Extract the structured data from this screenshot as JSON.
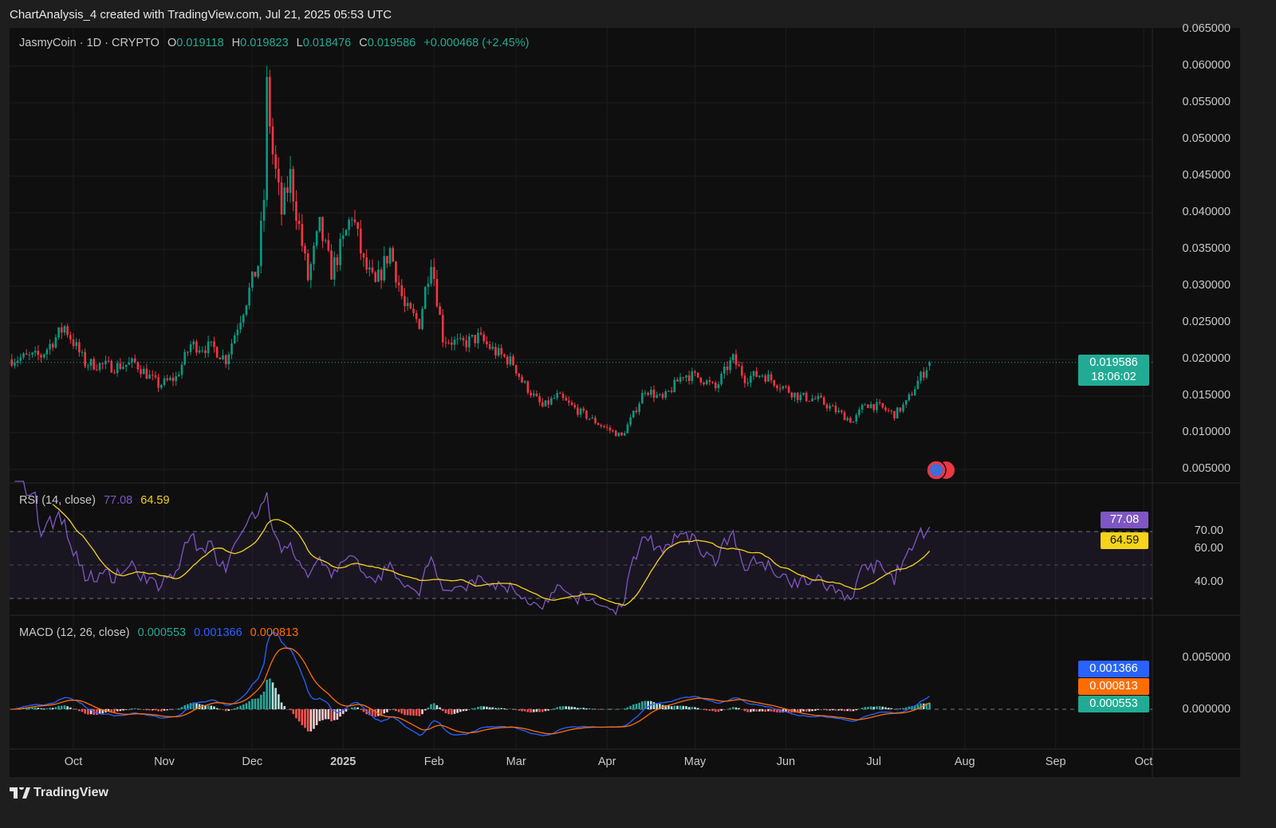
{
  "header": {
    "title": "ChartAnalysis_4 created with TradingView.com, Jul 21, 2025 05:53 UTC"
  },
  "symbol": {
    "name": "JasmyCoin · 1D · CRYPTO",
    "o_label": "O",
    "o": "0.019118",
    "h_label": "H",
    "h": "0.019823",
    "l_label": "L",
    "l": "0.018476",
    "c_label": "C",
    "c": "0.019586",
    "change": "+0.000468 (+2.45%)"
  },
  "price_tag": {
    "price": "0.019586",
    "countdown": "18:06:02",
    "color": "#22ab94"
  },
  "rsi": {
    "label": "RSI (14, close)",
    "value": "77.08",
    "ma": "64.59",
    "value_color": "#7e57c2",
    "ma_color": "#f7d21a",
    "axis": [
      "70.00",
      "60.00",
      "40.00"
    ]
  },
  "macd": {
    "label": "MACD (12, 26, close)",
    "hist": "0.000553",
    "macd": "0.001366",
    "signal": "0.000813",
    "hist_color": "#22ab94",
    "macd_color": "#2962ff",
    "signal_color": "#ff6d00",
    "axis": [
      "0.005000",
      "0.000000"
    ]
  },
  "footer": {
    "brand": "TradingView",
    "logo": "tradingview-logo"
  },
  "chart_data": {
    "type": "candlestick",
    "symbol": "JasmyCoin",
    "interval": "1D",
    "up_color": "#089981",
    "down_color": "#f23645",
    "y_ticks": [
      "0.065000",
      "0.060000",
      "0.055000",
      "0.050000",
      "0.045000",
      "0.040000",
      "0.035000",
      "0.030000",
      "0.025000",
      "0.020000",
      "0.015000",
      "0.010000",
      "0.005000"
    ],
    "ylim": [
      0.003,
      0.066
    ],
    "x_ticks": [
      "Oct",
      "Nov",
      "Dec",
      "2025",
      "Feb",
      "Mar",
      "Apr",
      "May",
      "Jun",
      "Jul",
      "Aug",
      "Sep",
      "Oct"
    ],
    "approx_closes": [
      [
        "2024-09-09",
        0.02
      ],
      [
        "2024-09-20",
        0.0205
      ],
      [
        "2024-09-28",
        0.0245
      ],
      [
        "2024-10-05",
        0.0195
      ],
      [
        "2024-10-15",
        0.019
      ],
      [
        "2024-10-22",
        0.0195
      ],
      [
        "2024-10-30",
        0.0165
      ],
      [
        "2024-11-05",
        0.0175
      ],
      [
        "2024-11-10",
        0.022
      ],
      [
        "2024-11-18",
        0.0215
      ],
      [
        "2024-11-22",
        0.02
      ],
      [
        "2024-11-28",
        0.027
      ],
      [
        "2024-12-03",
        0.033
      ],
      [
        "2024-12-05",
        0.042
      ],
      [
        "2024-12-06",
        0.057
      ],
      [
        "2024-12-08",
        0.048
      ],
      [
        "2024-12-11",
        0.04
      ],
      [
        "2024-12-14",
        0.045
      ],
      [
        "2024-12-17",
        0.038
      ],
      [
        "2024-12-20",
        0.031
      ],
      [
        "2024-12-24",
        0.038
      ],
      [
        "2024-12-28",
        0.032
      ],
      [
        "2025-01-01",
        0.036
      ],
      [
        "2025-01-04",
        0.04
      ],
      [
        "2025-01-08",
        0.033
      ],
      [
        "2025-01-12",
        0.03
      ],
      [
        "2025-01-17",
        0.035
      ],
      [
        "2025-01-22",
        0.027
      ],
      [
        "2025-01-27",
        0.025
      ],
      [
        "2025-01-31",
        0.034
      ],
      [
        "2025-02-04",
        0.023
      ],
      [
        "2025-02-10",
        0.022
      ],
      [
        "2025-02-16",
        0.023
      ],
      [
        "2025-02-22",
        0.021
      ],
      [
        "2025-02-28",
        0.0195
      ],
      [
        "2025-03-03",
        0.017
      ],
      [
        "2025-03-10",
        0.0135
      ],
      [
        "2025-03-15",
        0.015
      ],
      [
        "2025-03-22",
        0.013
      ],
      [
        "2025-03-30",
        0.011
      ],
      [
        "2025-04-06",
        0.0095
      ],
      [
        "2025-04-10",
        0.0125
      ],
      [
        "2025-04-14",
        0.016
      ],
      [
        "2025-04-20",
        0.0145
      ],
      [
        "2025-04-27",
        0.018
      ],
      [
        "2025-05-03",
        0.0175
      ],
      [
        "2025-05-08",
        0.016
      ],
      [
        "2025-05-12",
        0.019
      ],
      [
        "2025-05-14",
        0.02
      ],
      [
        "2025-05-18",
        0.0175
      ],
      [
        "2025-05-24",
        0.018
      ],
      [
        "2025-05-30",
        0.0165
      ],
      [
        "2025-06-05",
        0.015
      ],
      [
        "2025-06-12",
        0.0145
      ],
      [
        "2025-06-18",
        0.013
      ],
      [
        "2025-06-24",
        0.0115
      ],
      [
        "2025-06-28",
        0.014
      ],
      [
        "2025-07-03",
        0.0135
      ],
      [
        "2025-07-08",
        0.0125
      ],
      [
        "2025-07-12",
        0.014
      ],
      [
        "2025-07-16",
        0.017
      ],
      [
        "2025-07-20",
        0.019586
      ]
    ]
  }
}
